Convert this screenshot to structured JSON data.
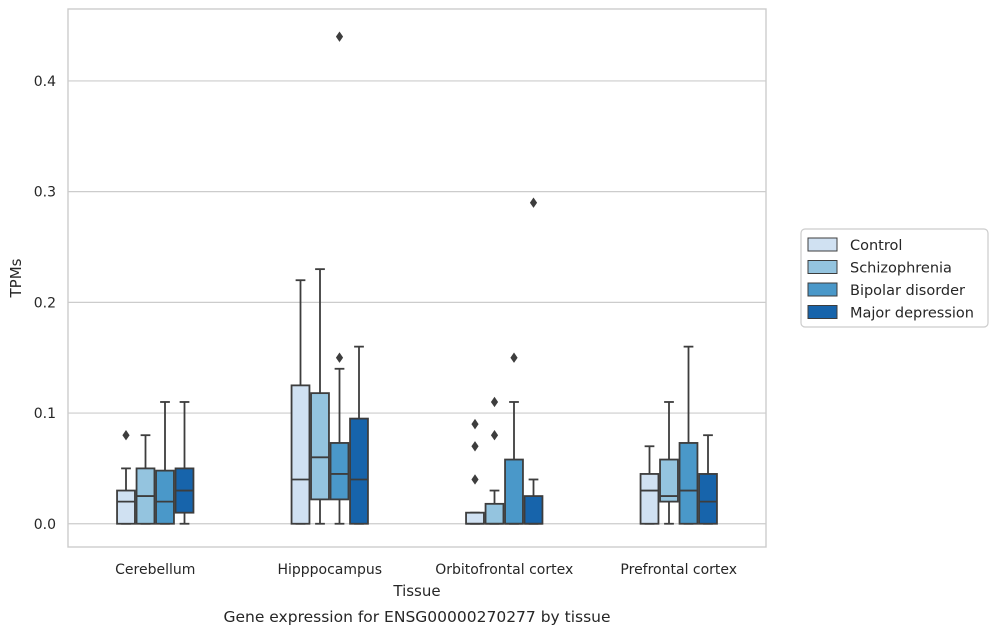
{
  "chart_data": {
    "type": "box",
    "xlabel": "Tissue",
    "ylabel": "TPMs",
    "caption": "Gene expression for ENSG00000270277 by tissue",
    "ylim": [
      -0.021,
      0.465
    ],
    "yticks": [
      "0.0",
      "0.1",
      "0.2",
      "0.3",
      "0.4"
    ],
    "ytick_values": [
      0.0,
      0.1,
      0.2,
      0.3,
      0.4
    ],
    "grid": "horizontal",
    "legend_position": "right",
    "categories": [
      "Cerebellum",
      "Hipppocampus",
      "Orbitofrontal cortex",
      "Prefrontal cortex"
    ],
    "series": [
      {
        "name": "Control",
        "color": "#d0e1f2",
        "boxes": [
          {
            "whisker_low": 0.0,
            "q1": 0.0,
            "median": 0.02,
            "q3": 0.03,
            "whisker_high": 0.05,
            "outliers": [
              0.08
            ]
          },
          {
            "whisker_low": 0.0,
            "q1": 0.0,
            "median": 0.04,
            "q3": 0.125,
            "whisker_high": 0.22,
            "outliers": []
          },
          {
            "whisker_low": 0.0,
            "q1": 0.0,
            "median": 0.0,
            "q3": 0.01,
            "whisker_high": 0.01,
            "outliers": [
              0.04,
              0.07,
              0.09
            ]
          },
          {
            "whisker_low": 0.0,
            "q1": 0.0,
            "median": 0.03,
            "q3": 0.045,
            "whisker_high": 0.07,
            "outliers": []
          }
        ]
      },
      {
        "name": "Schizophrenia",
        "color": "#94c4df",
        "boxes": [
          {
            "whisker_low": 0.0,
            "q1": 0.0,
            "median": 0.025,
            "q3": 0.05,
            "whisker_high": 0.08,
            "outliers": []
          },
          {
            "whisker_low": 0.0,
            "q1": 0.022,
            "median": 0.06,
            "q3": 0.118,
            "whisker_high": 0.23,
            "outliers": []
          },
          {
            "whisker_low": 0.0,
            "q1": 0.0,
            "median": 0.0,
            "q3": 0.018,
            "whisker_high": 0.03,
            "outliers": [
              0.08,
              0.11
            ]
          },
          {
            "whisker_low": 0.0,
            "q1": 0.02,
            "median": 0.025,
            "q3": 0.058,
            "whisker_high": 0.11,
            "outliers": []
          }
        ]
      },
      {
        "name": "Bipolar disorder",
        "color": "#4a98c9",
        "boxes": [
          {
            "whisker_low": 0.0,
            "q1": 0.0,
            "median": 0.02,
            "q3": 0.048,
            "whisker_high": 0.11,
            "outliers": []
          },
          {
            "whisker_low": 0.0,
            "q1": 0.022,
            "median": 0.045,
            "q3": 0.073,
            "whisker_high": 0.14,
            "outliers": [
              0.15,
              0.44
            ]
          },
          {
            "whisker_low": 0.0,
            "q1": 0.0,
            "median": 0.0,
            "q3": 0.058,
            "whisker_high": 0.11,
            "outliers": [
              0.15
            ]
          },
          {
            "whisker_low": 0.0,
            "q1": 0.0,
            "median": 0.03,
            "q3": 0.073,
            "whisker_high": 0.16,
            "outliers": []
          }
        ]
      },
      {
        "name": "Major depression",
        "color": "#1764ab",
        "boxes": [
          {
            "whisker_low": 0.0,
            "q1": 0.01,
            "median": 0.03,
            "q3": 0.05,
            "whisker_high": 0.11,
            "outliers": []
          },
          {
            "whisker_low": 0.0,
            "q1": 0.0,
            "median": 0.04,
            "q3": 0.095,
            "whisker_high": 0.16,
            "outliers": []
          },
          {
            "whisker_low": 0.0,
            "q1": 0.0,
            "median": 0.0,
            "q3": 0.025,
            "whisker_high": 0.04,
            "outliers": [
              0.29
            ]
          },
          {
            "whisker_low": 0.0,
            "q1": 0.0,
            "median": 0.02,
            "q3": 0.045,
            "whisker_high": 0.08,
            "outliers": []
          }
        ]
      }
    ],
    "colors": {
      "box_edge": "#3d3d3d",
      "grid": "#cccccc",
      "axes_edge": "#cccccc",
      "outlier": "#3d3d3d"
    }
  }
}
